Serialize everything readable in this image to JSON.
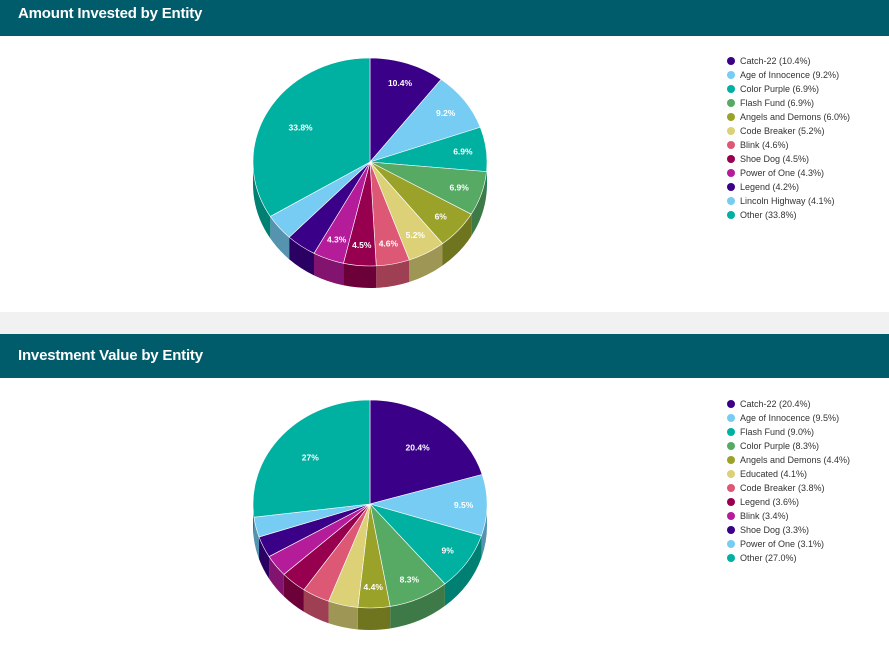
{
  "colors": [
    "#3a0088",
    "#76ccf2",
    "#00b0a0",
    "#56aa64",
    "#9aa22a",
    "#dcd176",
    "#dd5875",
    "#96004e",
    "#b51c9a",
    "#3a0088",
    "#76ccf2",
    "#00b0a0"
  ],
  "chart_data": [
    {
      "type": "pie",
      "title": "Amount Invested by Entity",
      "legend_position": "right",
      "categories": [
        "Catch-22",
        "Age of Innocence",
        "Color Purple",
        "Flash Fund",
        "Angels and Demons",
        "Code Breaker",
        "Blink",
        "Shoe Dog",
        "Power of One",
        "Legend",
        "Lincoln Highway",
        "Other"
      ],
      "values": [
        10.4,
        9.2,
        6.9,
        6.9,
        6.0,
        5.2,
        4.6,
        4.5,
        4.3,
        4.2,
        4.1,
        33.8
      ],
      "legend_labels": [
        "Catch-22 (10.4%)",
        "Age of Innocence (9.2%)",
        "Color Purple (6.9%)",
        "Flash Fund (6.9%)",
        "Angels and Demons (6.0%)",
        "Code Breaker (5.2%)",
        "Blink (4.6%)",
        "Shoe Dog (4.5%)",
        "Power of One (4.3%)",
        "Legend (4.2%)",
        "Lincoln Highway (4.1%)",
        "Other (33.8%)"
      ],
      "data_labels": [
        "10.4%",
        "9.2%",
        "6.9%",
        "6.9%",
        "6%",
        "5.2%",
        "4.6%",
        "4.5%",
        "4.3%",
        "",
        "",
        "33.8%"
      ]
    },
    {
      "type": "pie",
      "title": "Investment Value by Entity",
      "legend_position": "right",
      "categories": [
        "Catch-22",
        "Age of Innocence",
        "Flash Fund",
        "Color Purple",
        "Angels and Demons",
        "Educated",
        "Code Breaker",
        "Legend",
        "Blink",
        "Shoe Dog",
        "Power of One",
        "Other"
      ],
      "values": [
        20.4,
        9.5,
        9.0,
        8.3,
        4.4,
        4.1,
        3.8,
        3.6,
        3.4,
        3.3,
        3.1,
        27.0
      ],
      "legend_labels": [
        "Catch-22 (20.4%)",
        "Age of Innocence (9.5%)",
        "Flash Fund (9.0%)",
        "Color Purple (8.3%)",
        "Angels and Demons (4.4%)",
        "Educated (4.1%)",
        "Code Breaker (3.8%)",
        "Legend (3.6%)",
        "Blink (3.4%)",
        "Shoe Dog (3.3%)",
        "Power of One (3.1%)",
        "Other (27.0%)"
      ],
      "data_labels": [
        "20.4%",
        "9.5%",
        "9%",
        "8.3%",
        "4.4%",
        "",
        "",
        "",
        "",
        "",
        "",
        "27%"
      ]
    }
  ]
}
